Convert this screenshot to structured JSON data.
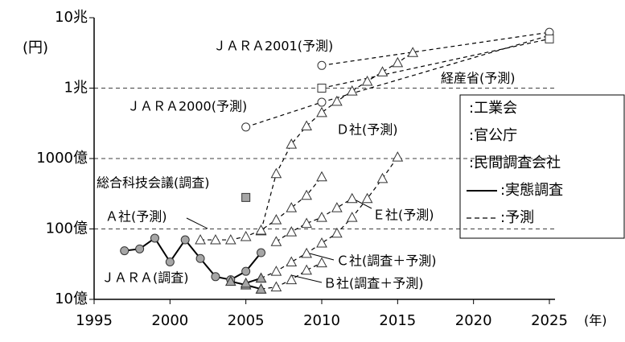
{
  "chart_data": {
    "type": "line",
    "ylabel": "(円)",
    "xlabel": "(年)",
    "log_y": true,
    "grid": true,
    "xlim": [
      1995,
      2025
    ],
    "xticks": [
      1995,
      2000,
      2005,
      2010,
      2015,
      2020,
      2025
    ],
    "ylim": [
      1000000000,
      10000000000000
    ],
    "yticks": [
      {
        "value": 1000000000,
        "label": "10億"
      },
      {
        "value": 10000000000,
        "label": "100億"
      },
      {
        "value": 100000000000,
        "label": "1000億"
      },
      {
        "value": 1000000000000,
        "label": "1兆"
      },
      {
        "value": 10000000000000,
        "label": "10兆"
      }
    ],
    "series": [
      {
        "name": "ＪＡＲＡ(調査)",
        "style": "solid",
        "marker": "circle",
        "color": "#a6a6a6",
        "x": [
          1997,
          1998,
          1999,
          2000,
          2001,
          2002,
          2003,
          2004,
          2005,
          2006
        ],
        "values": [
          4900000000,
          5200000000,
          7400000000,
          3400000000,
          7000000000,
          3800000000,
          2100000000,
          1900000000,
          2500000000,
          4600000000
        ]
      },
      {
        "name": "ＪＡＲＡ2000(予測)",
        "style": "dashed",
        "marker": "circle",
        "color": "#ffffff",
        "x": [
          2005,
          2010,
          2025
        ],
        "values": [
          280000000000,
          630000000000,
          5600000000000
        ]
      },
      {
        "name": "ＪＡＲＡ2001(予測)",
        "style": "dashed",
        "marker": "circle",
        "color": "#ffffff",
        "x": [
          2010,
          2025
        ],
        "values": [
          2100000000000,
          6200000000000
        ]
      },
      {
        "name": "経産省(予測)",
        "style": "dashed",
        "marker": "square",
        "color": "#ffffff",
        "x": [
          2010,
          2025
        ],
        "values": [
          1000000000000,
          5000000000000
        ]
      },
      {
        "name": "総合科技会議(調査)",
        "style": "none",
        "marker": "square",
        "color": "#a6a6a6",
        "x": [
          2005
        ],
        "values": [
          28000000000
        ]
      },
      {
        "name": "Ｄ社(予測)",
        "style": "dashed",
        "marker": "triangle",
        "color": "#ffffff",
        "x": [
          2006,
          2007,
          2008,
          2009,
          2010,
          2011,
          2012,
          2013,
          2014,
          2015,
          2016
        ],
        "values": [
          9400000000,
          61000000000,
          160000000000,
          290000000000,
          450000000000,
          650000000000,
          910000000000,
          1250000000000,
          1700000000000,
          2300000000000,
          3200000000000
        ]
      },
      {
        "name": "Ａ社(予測)",
        "style": "dashed",
        "marker": "triangle",
        "color": "#ffffff",
        "x": [
          2002,
          2003,
          2004,
          2005,
          2006,
          2007,
          2008,
          2009,
          2010
        ],
        "values": [
          7000000000,
          7000000000,
          7000000000,
          7800000000,
          9600000000,
          13500000000,
          20000000000,
          30000000000,
          55000000000
        ]
      },
      {
        "name": "Ｅ社(予測)",
        "style": "dashed",
        "marker": "triangle",
        "color": "#ffffff",
        "x": [
          2007,
          2008,
          2009,
          2010,
          2011,
          2012
        ],
        "values": [
          6600000000,
          9100000000,
          12000000000,
          14600000000,
          20000000000,
          27000000000
        ]
      },
      {
        "name": "Ｃ社(調査＋予測)",
        "style": "dashed",
        "marker": "triangle",
        "color": "#ffffff",
        "x": [
          2006,
          2007,
          2008,
          2009,
          2010,
          2011,
          2012,
          2013,
          2014,
          2015
        ],
        "values": [
          2000000000,
          2500000000,
          3400000000,
          4500000000,
          6300000000,
          8700000000,
          14600000000,
          27000000000,
          52000000000,
          105000000000
        ]
      },
      {
        "name": "Ｂ社(調査＋予測)",
        "style": "dashed",
        "marker": "triangle",
        "color": "#ffffff",
        "x": [
          2006,
          2007,
          2008,
          2009,
          2010
        ],
        "values": [
          1400000000,
          1500000000,
          1900000000,
          2600000000,
          3300000000
        ]
      },
      {
        "style": "solid",
        "marker": "triangle",
        "color": "#a6a6a6",
        "x": [
          2004,
          2005,
          2006
        ],
        "values": [
          1800000000,
          1600000000,
          1400000000
        ]
      },
      {
        "style": "solid",
        "marker": "triangle",
        "color": "#a6a6a6",
        "x": [
          2005,
          2006
        ],
        "values": [
          1700000000,
          2000000000
        ]
      }
    ],
    "legend": [
      {
        "label": ":工業会"
      },
      {
        "label": ":官公庁"
      },
      {
        "label": ":民間調査会社"
      },
      {
        "label": ":実態調査",
        "style": "solid"
      },
      {
        "label": ":予測",
        "style": "dashed"
      }
    ]
  }
}
